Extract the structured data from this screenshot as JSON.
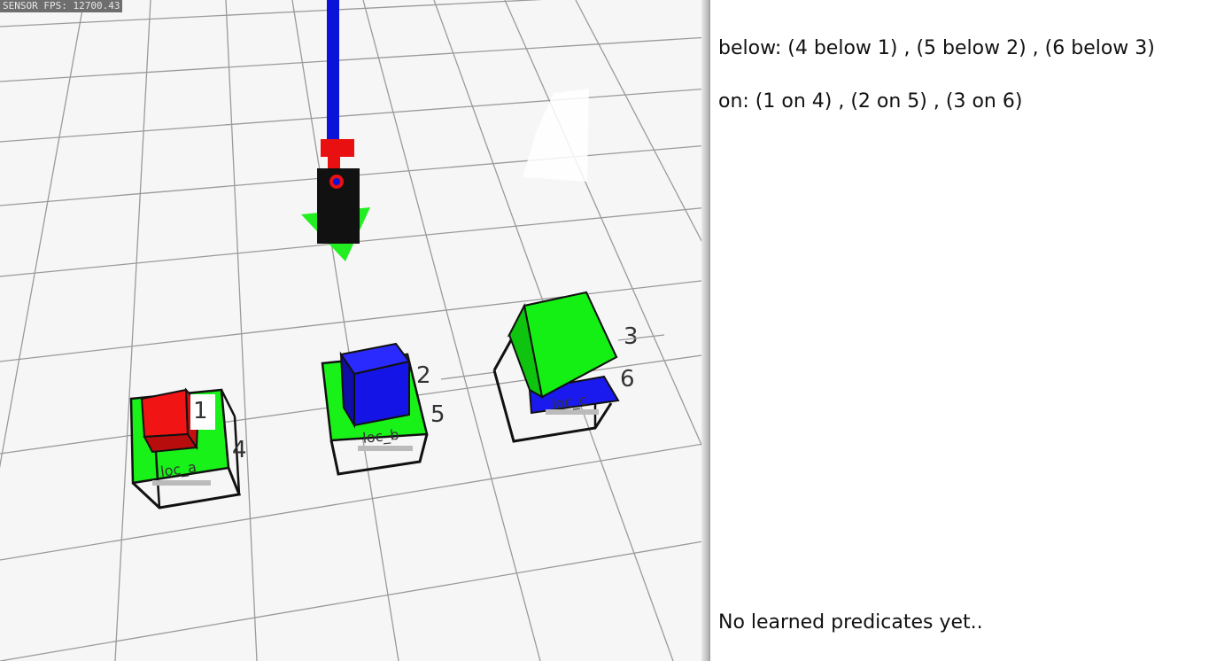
{
  "overlay": {
    "fps_text": "SENSOR FPS: 12700.43"
  },
  "scene": {
    "object_labels": [
      "1",
      "2",
      "3",
      "4",
      "5",
      "6"
    ],
    "location_labels": [
      "loc_a",
      "loc_b",
      "loc_c"
    ],
    "colors": {
      "grid_line": "#9a9a9a",
      "location_pad": "#19f219",
      "red_block": "#f01414",
      "blue_block": "#1414e6",
      "green_block": "#14f014",
      "arm": "#0a14d8",
      "gripper": "#111111",
      "gripper_marker": "#22ee22"
    }
  },
  "panel": {
    "below_predicates": "below: (4 below 1) , (5 below 2) , (6 below 3)",
    "on_predicates": "on: (1 on 4) , (2 on 5) , (3 on 6)",
    "learned_status": "No learned predicates yet.."
  }
}
